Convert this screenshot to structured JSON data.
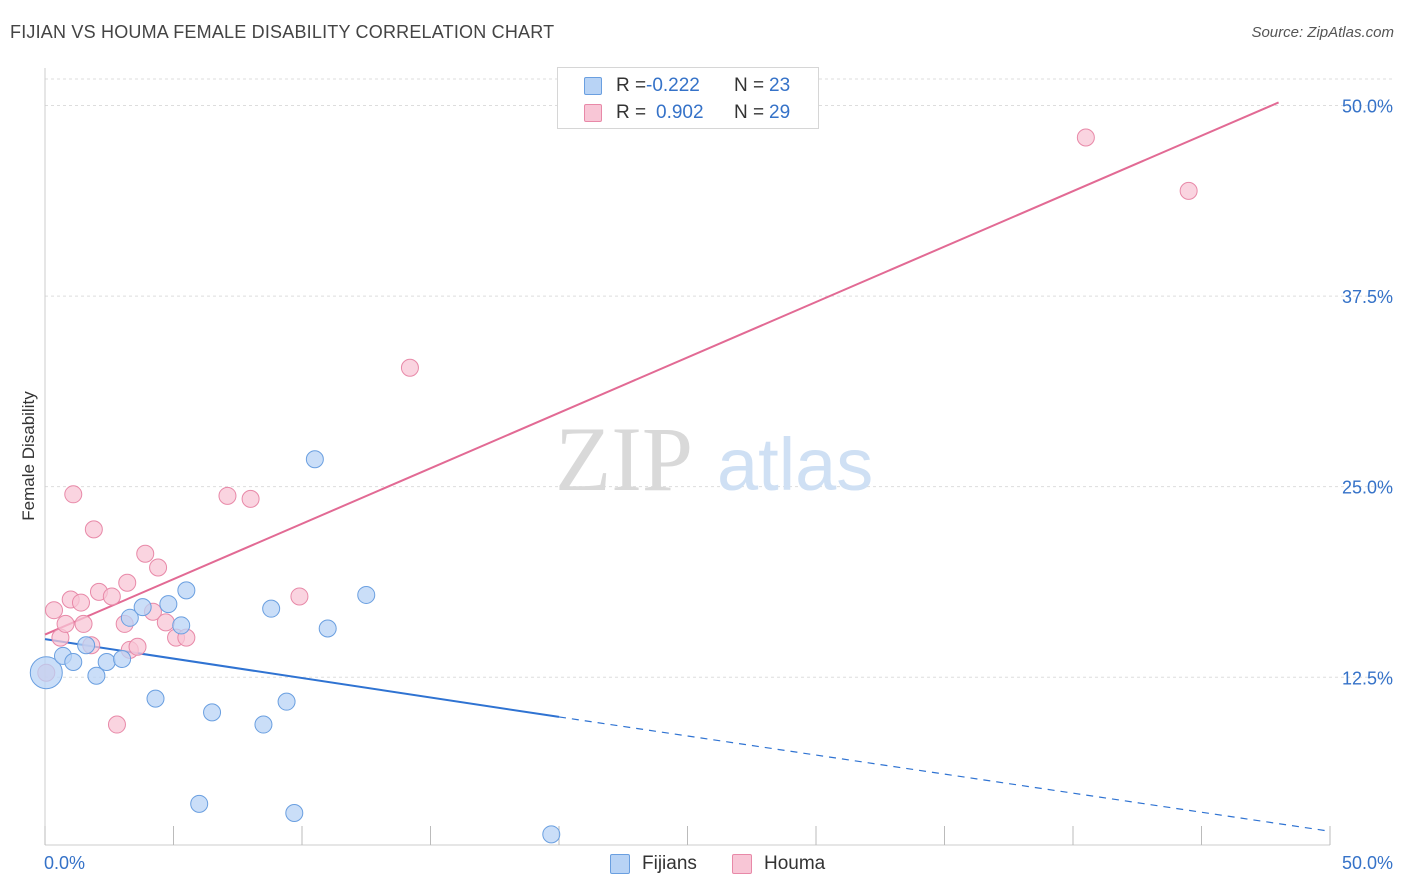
{
  "title": "FIJIAN VS HOUMA FEMALE DISABILITY CORRELATION CHART",
  "source": "Source: ZipAtlas.com",
  "watermark": {
    "zip": "ZIP",
    "atlas": "atlas"
  },
  "colors": {
    "fijians_fill": "#b8d3f5",
    "fijians_stroke": "#6a9fe0",
    "fijians_line": "#2f73d2",
    "houma_fill": "#f8c6d6",
    "houma_stroke": "#e889a8",
    "houma_line": "#e26a94",
    "tick_label": "#3572c8",
    "grid": "#dddddd"
  },
  "legend_top": [
    {
      "r_label": "R =",
      "r_value": "-0.222",
      "n_label": "N =",
      "n_value": "23"
    },
    {
      "r_label": "R =",
      "r_value": "0.902",
      "n_label": "N =",
      "n_value": "29"
    }
  ],
  "legend_bottom": [
    "Fijians",
    "Houma"
  ],
  "chart_data": {
    "type": "scatter",
    "title": "FIJIAN VS HOUMA FEMALE DISABILITY CORRELATION CHART",
    "xlabel": "",
    "ylabel": "Female Disability",
    "xlim": [
      0,
      50
    ],
    "ylim": [
      1.5,
      52
    ],
    "x_tick_labels": [
      "0.0%",
      "50.0%"
    ],
    "y_ticks": [
      12.5,
      25.0,
      37.5,
      50.0
    ],
    "y_tick_labels": [
      "12.5%",
      "25.0%",
      "37.5%",
      "50.0%"
    ],
    "grid": true,
    "legend_placement": "top-center",
    "series": [
      {
        "name": "Fijians",
        "r": -0.222,
        "n": 23,
        "points": [
          {
            "x": 0.05,
            "y": 12.8,
            "big": true
          },
          {
            "x": 0.7,
            "y": 13.9
          },
          {
            "x": 1.1,
            "y": 13.5
          },
          {
            "x": 1.6,
            "y": 14.6
          },
          {
            "x": 2.0,
            "y": 12.6
          },
          {
            "x": 2.4,
            "y": 13.5
          },
          {
            "x": 3.0,
            "y": 13.7
          },
          {
            "x": 3.3,
            "y": 16.4
          },
          {
            "x": 3.8,
            "y": 17.1
          },
          {
            "x": 4.3,
            "y": 11.1
          },
          {
            "x": 4.8,
            "y": 17.3
          },
          {
            "x": 5.3,
            "y": 15.9
          },
          {
            "x": 5.5,
            "y": 18.2
          },
          {
            "x": 6.0,
            "y": 4.2
          },
          {
            "x": 6.5,
            "y": 10.2
          },
          {
            "x": 8.5,
            "y": 9.4
          },
          {
            "x": 8.8,
            "y": 17.0
          },
          {
            "x": 9.4,
            "y": 10.9
          },
          {
            "x": 9.7,
            "y": 3.6
          },
          {
            "x": 10.5,
            "y": 26.8
          },
          {
            "x": 11.0,
            "y": 15.7
          },
          {
            "x": 12.5,
            "y": 17.9
          },
          {
            "x": 19.7,
            "y": 2.2
          }
        ],
        "trend": {
          "x0": 0,
          "y0": 15.0,
          "x1": 20.0,
          "y1": 9.9,
          "dashed_to_x": 50,
          "dashed_to_y": 2.4
        }
      },
      {
        "name": "Houma",
        "r": 0.902,
        "n": 29,
        "points": [
          {
            "x": 0.05,
            "y": 12.8
          },
          {
            "x": 0.35,
            "y": 16.9
          },
          {
            "x": 0.6,
            "y": 15.1
          },
          {
            "x": 0.8,
            "y": 16.0
          },
          {
            "x": 1.0,
            "y": 17.6
          },
          {
            "x": 1.1,
            "y": 24.5
          },
          {
            "x": 1.4,
            "y": 17.4
          },
          {
            "x": 1.5,
            "y": 16.0
          },
          {
            "x": 1.8,
            "y": 14.6
          },
          {
            "x": 1.9,
            "y": 22.2
          },
          {
            "x": 2.1,
            "y": 18.1
          },
          {
            "x": 2.6,
            "y": 17.8
          },
          {
            "x": 2.8,
            "y": 9.4
          },
          {
            "x": 3.1,
            "y": 16.0
          },
          {
            "x": 3.2,
            "y": 18.7
          },
          {
            "x": 3.3,
            "y": 14.3
          },
          {
            "x": 3.6,
            "y": 14.5
          },
          {
            "x": 3.9,
            "y": 20.6
          },
          {
            "x": 4.2,
            "y": 16.8
          },
          {
            "x": 4.4,
            "y": 19.7
          },
          {
            "x": 4.7,
            "y": 16.1
          },
          {
            "x": 5.1,
            "y": 15.1
          },
          {
            "x": 5.5,
            "y": 15.1
          },
          {
            "x": 7.1,
            "y": 24.4
          },
          {
            "x": 8.0,
            "y": 24.2
          },
          {
            "x": 9.9,
            "y": 17.8
          },
          {
            "x": 14.2,
            "y": 32.8
          },
          {
            "x": 40.5,
            "y": 47.9
          },
          {
            "x": 44.5,
            "y": 44.4
          }
        ],
        "trend": {
          "x0": 0,
          "y0": 15.3,
          "x1": 48.0,
          "y1": 50.2
        }
      }
    ]
  }
}
